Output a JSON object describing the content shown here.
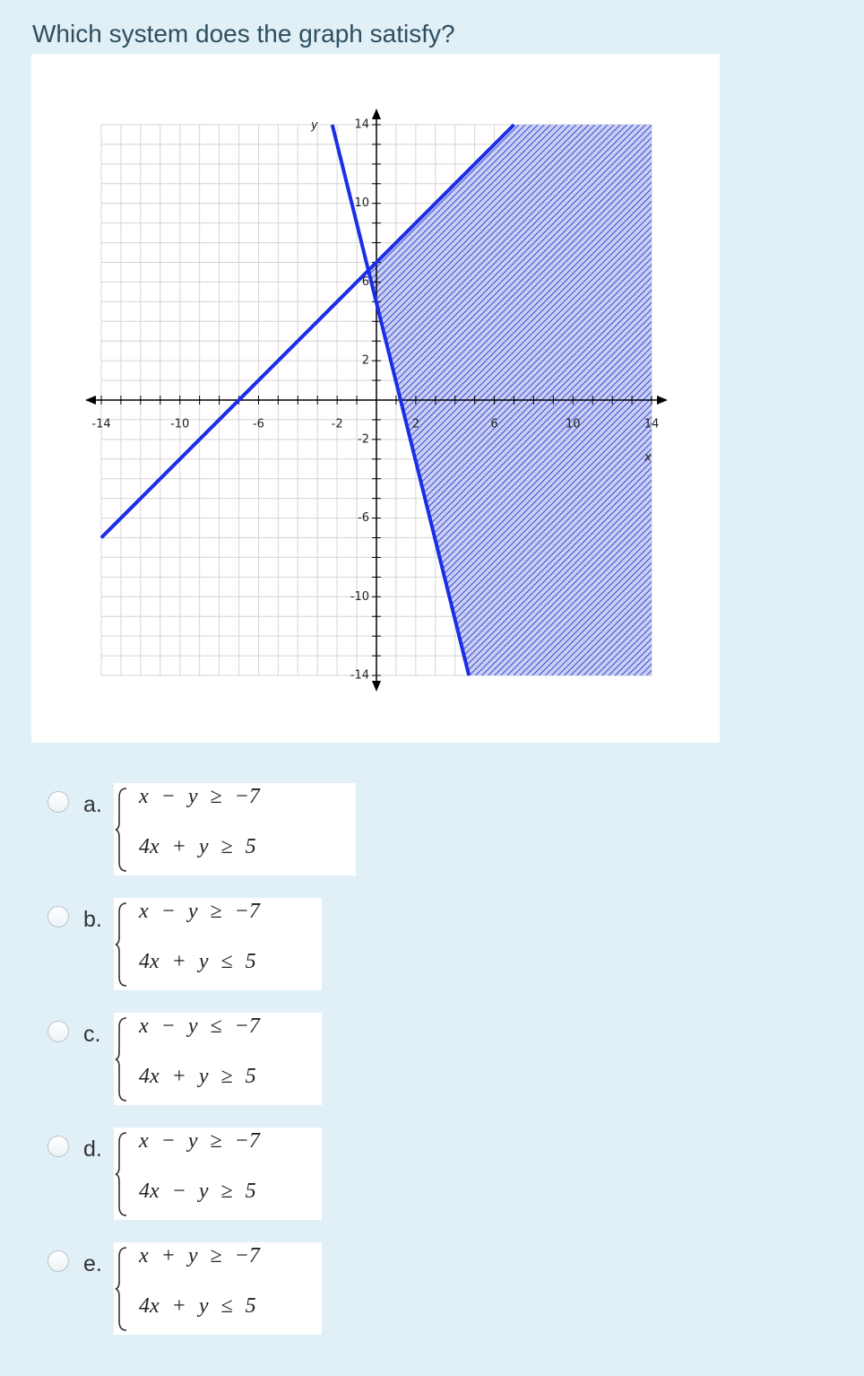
{
  "question": "Which system does the graph satisfy?",
  "graph": {
    "x_axis_label": "x",
    "y_axis_label": "y",
    "x_tick_labels": [
      "-14",
      "-10",
      "-6",
      "-2",
      "2",
      "6",
      "10",
      "14"
    ],
    "y_tick_labels": [
      "14",
      "10",
      "6",
      "2",
      "-2",
      "-6",
      "-10",
      "-14"
    ]
  },
  "options": [
    {
      "letter": "a.",
      "lines": [
        "x − y ≥ −7",
        "4x + y ≥ 5"
      ]
    },
    {
      "letter": "b.",
      "lines": [
        "x − y ≥ −7",
        "4x + y ≤ 5"
      ]
    },
    {
      "letter": "c.",
      "lines": [
        "x − y ≤ −7",
        "4x + y ≥ 5"
      ]
    },
    {
      "letter": "d.",
      "lines": [
        "x − y ≥ −7",
        "4x − y ≥ 5"
      ]
    },
    {
      "letter": "e.",
      "lines": [
        "x + y ≥ −7",
        "4x + y ≤ 5"
      ]
    }
  ]
}
